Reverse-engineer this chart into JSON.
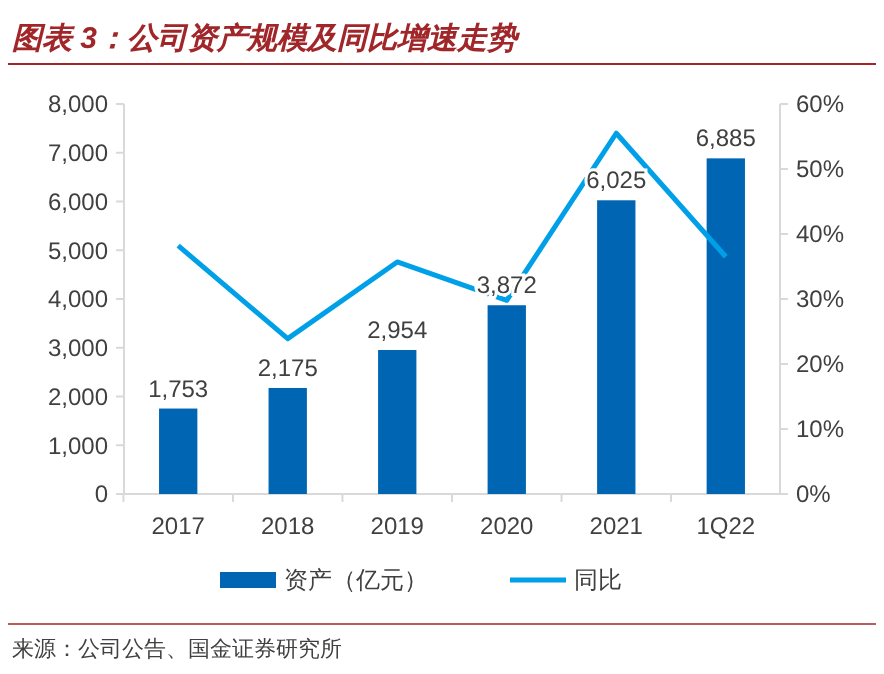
{
  "chart_data": {
    "type": "bar",
    "title": "图表 3：公司资产规模及同比增速走势",
    "categories": [
      "2017",
      "2018",
      "2019",
      "2020",
      "2021",
      "1Q22"
    ],
    "series": [
      {
        "name": "资产（亿元）",
        "color": "#0066b3",
        "values": [
          1753,
          2175,
          2954,
          3872,
          6025,
          6885
        ],
        "value_labels": [
          "1,753",
          "2,175",
          "2,954",
          "3,872",
          "6,025",
          "6,885"
        ]
      },
      {
        "name": "同比",
        "type": "line",
        "axis": "y2",
        "color": "#00a0e9",
        "values": [
          38.2,
          23.9,
          35.7,
          29.8,
          55.5,
          36.5
        ]
      }
    ],
    "ylim": [
      0,
      8000
    ],
    "yticks": [
      0,
      {
        "value": 1000,
        "label": "1,000"
      },
      {
        "value": 2000,
        "label": "2,000"
      },
      {
        "value": 3000,
        "label": "3,000"
      },
      {
        "value": 4000,
        "label": "4,000"
      },
      {
        "value": 5000,
        "label": "5,000"
      },
      {
        "value": 6000,
        "label": "6,000"
      },
      {
        "value": 7000,
        "label": "7,000"
      },
      {
        "value": 8000,
        "label": "8,000"
      }
    ],
    "y2lim": [
      0,
      60
    ],
    "y2ticks": [
      {
        "value": 0,
        "label": "0%"
      },
      {
        "value": 10,
        "label": "10%"
      },
      {
        "value": 20,
        "label": "20%"
      },
      {
        "value": 30,
        "label": "30%"
      },
      {
        "value": 40,
        "label": "40%"
      },
      {
        "value": 50,
        "label": "50%"
      },
      {
        "value": 60,
        "label": "60%"
      }
    ],
    "grid": false,
    "legend": "bottom",
    "marker": "none",
    "line_style": "solid",
    "annotations": [
      "来源：公司公告、国金证券研究所"
    ]
  }
}
